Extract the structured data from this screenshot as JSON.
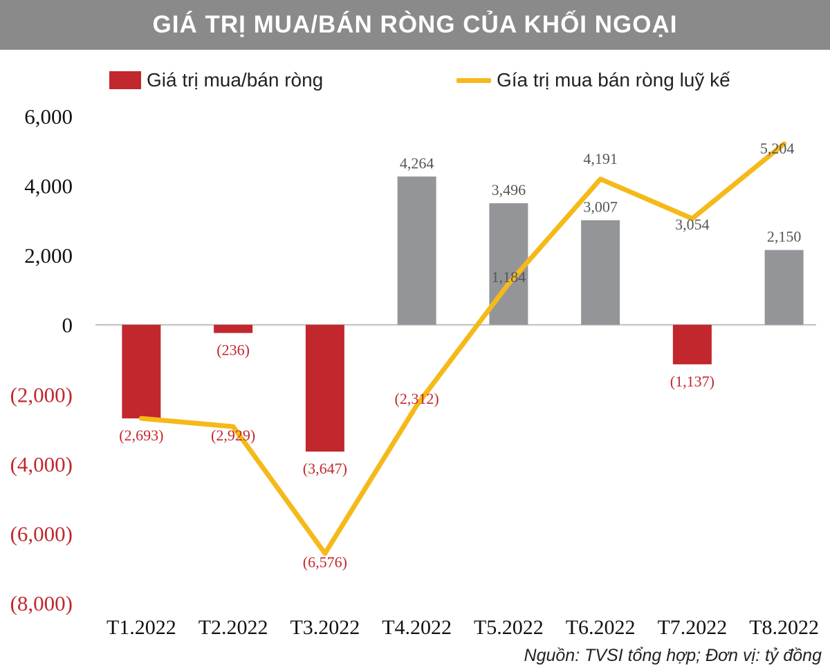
{
  "title": "GIÁ TRỊ MUA/BÁN RÒNG CỦA KHỐI NGOẠI",
  "source_note": "Nguồn: TVSI tổng hợp; Đơn vị: tỷ đồng",
  "colors": {
    "negative_bar": "#c1272d",
    "positive_bar": "#939598",
    "line": "#f5b91a",
    "negative_label": "#c1272d",
    "positive_label": "#555555",
    "title_bg": "#8a8a8b"
  },
  "chart_data": {
    "type": "bar",
    "categories": [
      "T1.2022",
      "T2.2022",
      "T3.2022",
      "T4.2022",
      "T5.2022",
      "T6.2022",
      "T7.2022",
      "T8.2022"
    ],
    "ylim": [
      -8000,
      6000
    ],
    "yticks": [
      6000,
      4000,
      2000,
      0,
      -2000,
      -4000,
      -6000,
      -8000
    ],
    "ytick_labels": [
      "6,000",
      "4,000",
      "2,000",
      "0",
      "(2,000)",
      "(4,000)",
      "(6,000)",
      "(8,000)"
    ],
    "legend_position": "top",
    "series": [
      {
        "name": "Giá trị mua/bán ròng",
        "kind": "bar",
        "values": [
          -2693,
          -236,
          -3647,
          4264,
          3496,
          3007,
          -1137,
          2150
        ],
        "labels": [
          "(2,693)",
          "(236)",
          "(3,647)",
          "4,264",
          "3,496",
          "3,007",
          "(1,137)",
          "2,150"
        ]
      },
      {
        "name": "Gía trị mua bán ròng luỹ kế",
        "kind": "line",
        "values": [
          -2693,
          -2929,
          -6576,
          -2312,
          1184,
          4191,
          3054,
          5204
        ],
        "labels": [
          "",
          "(2,929)",
          "(6,576)",
          "(2,312)",
          "1,184",
          "4,191",
          "3,054",
          "5,204"
        ]
      }
    ]
  }
}
